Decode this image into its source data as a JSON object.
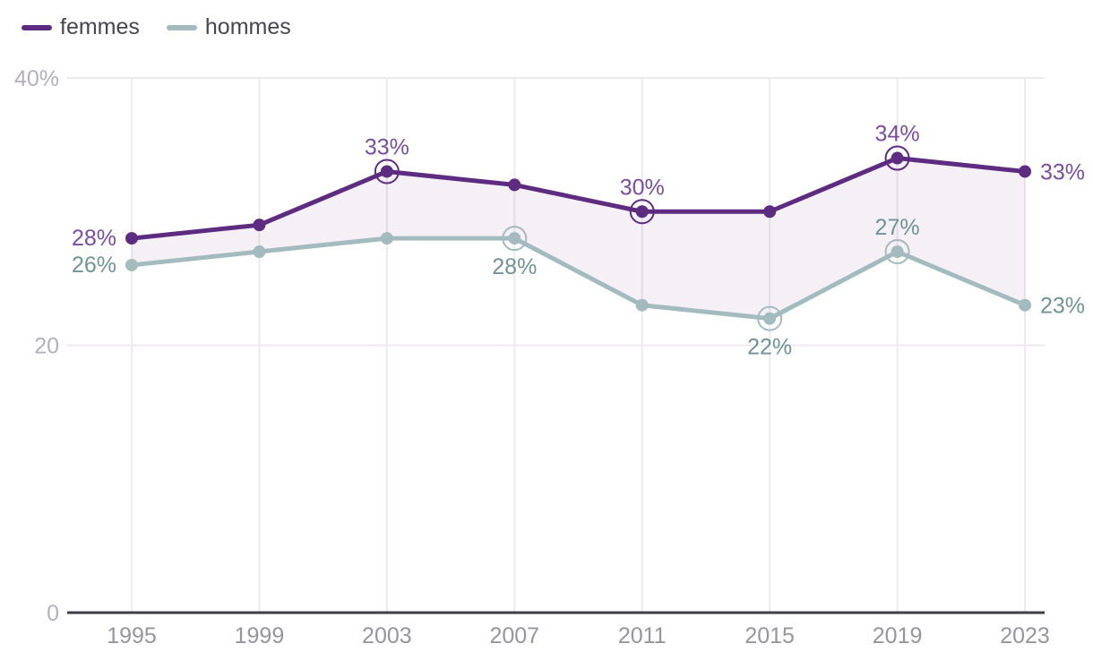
{
  "chart_data": {
    "type": "line",
    "title": "",
    "categories": [
      "1995",
      "1999",
      "2003",
      "2007",
      "2011",
      "2015",
      "2019",
      "2023"
    ],
    "series": [
      {
        "name": "femmes",
        "color": "#5d2b80",
        "label_color": "#7b4e9b",
        "values": [
          28,
          29,
          33,
          32,
          30,
          30,
          34,
          33
        ],
        "point_labels": [
          {
            "index": 0,
            "text": "28%",
            "position": "left",
            "ring": false
          },
          {
            "index": 2,
            "text": "33%",
            "position": "above",
            "ring": true
          },
          {
            "index": 4,
            "text": "30%",
            "position": "above",
            "ring": true
          },
          {
            "index": 6,
            "text": "34%",
            "position": "above",
            "ring": true
          },
          {
            "index": 7,
            "text": "33%",
            "position": "right",
            "ring": false
          }
        ]
      },
      {
        "name": "hommes",
        "color": "#a3bbbe",
        "label_color": "#6f9396",
        "values": [
          26,
          27,
          28,
          28,
          23,
          22,
          27,
          23
        ],
        "point_labels": [
          {
            "index": 0,
            "text": "26%",
            "position": "left",
            "ring": false
          },
          {
            "index": 3,
            "text": "28%",
            "position": "below",
            "ring": true
          },
          {
            "index": 5,
            "text": "22%",
            "position": "below",
            "ring": true
          },
          {
            "index": 6,
            "text": "27%",
            "position": "above",
            "ring": true
          },
          {
            "index": 7,
            "text": "23%",
            "position": "right",
            "ring": false
          }
        ]
      }
    ],
    "area_between": {
      "fill": "rgba(125,60,135,0.08)"
    },
    "y_axis": {
      "min": 0,
      "max": 40,
      "ticks": [
        {
          "value": 40,
          "label": "40%"
        },
        {
          "value": 20,
          "label": "20"
        },
        {
          "value": 0,
          "label": "0"
        }
      ]
    },
    "x_axis": {
      "tick_labels": [
        "1995",
        "1999",
        "2003",
        "2007",
        "2011",
        "2015",
        "2019",
        "2023"
      ]
    },
    "legend": {
      "position": "top-left"
    },
    "grid": {
      "vertical": true,
      "horizontal": true,
      "color": "#eceaed"
    },
    "colors": {
      "axis_line": "#3f3e44",
      "y_tick_text": "#b3b1b7",
      "x_tick_text": "#96959b",
      "legend_text": "#47464c",
      "background": "#ffffff"
    }
  }
}
